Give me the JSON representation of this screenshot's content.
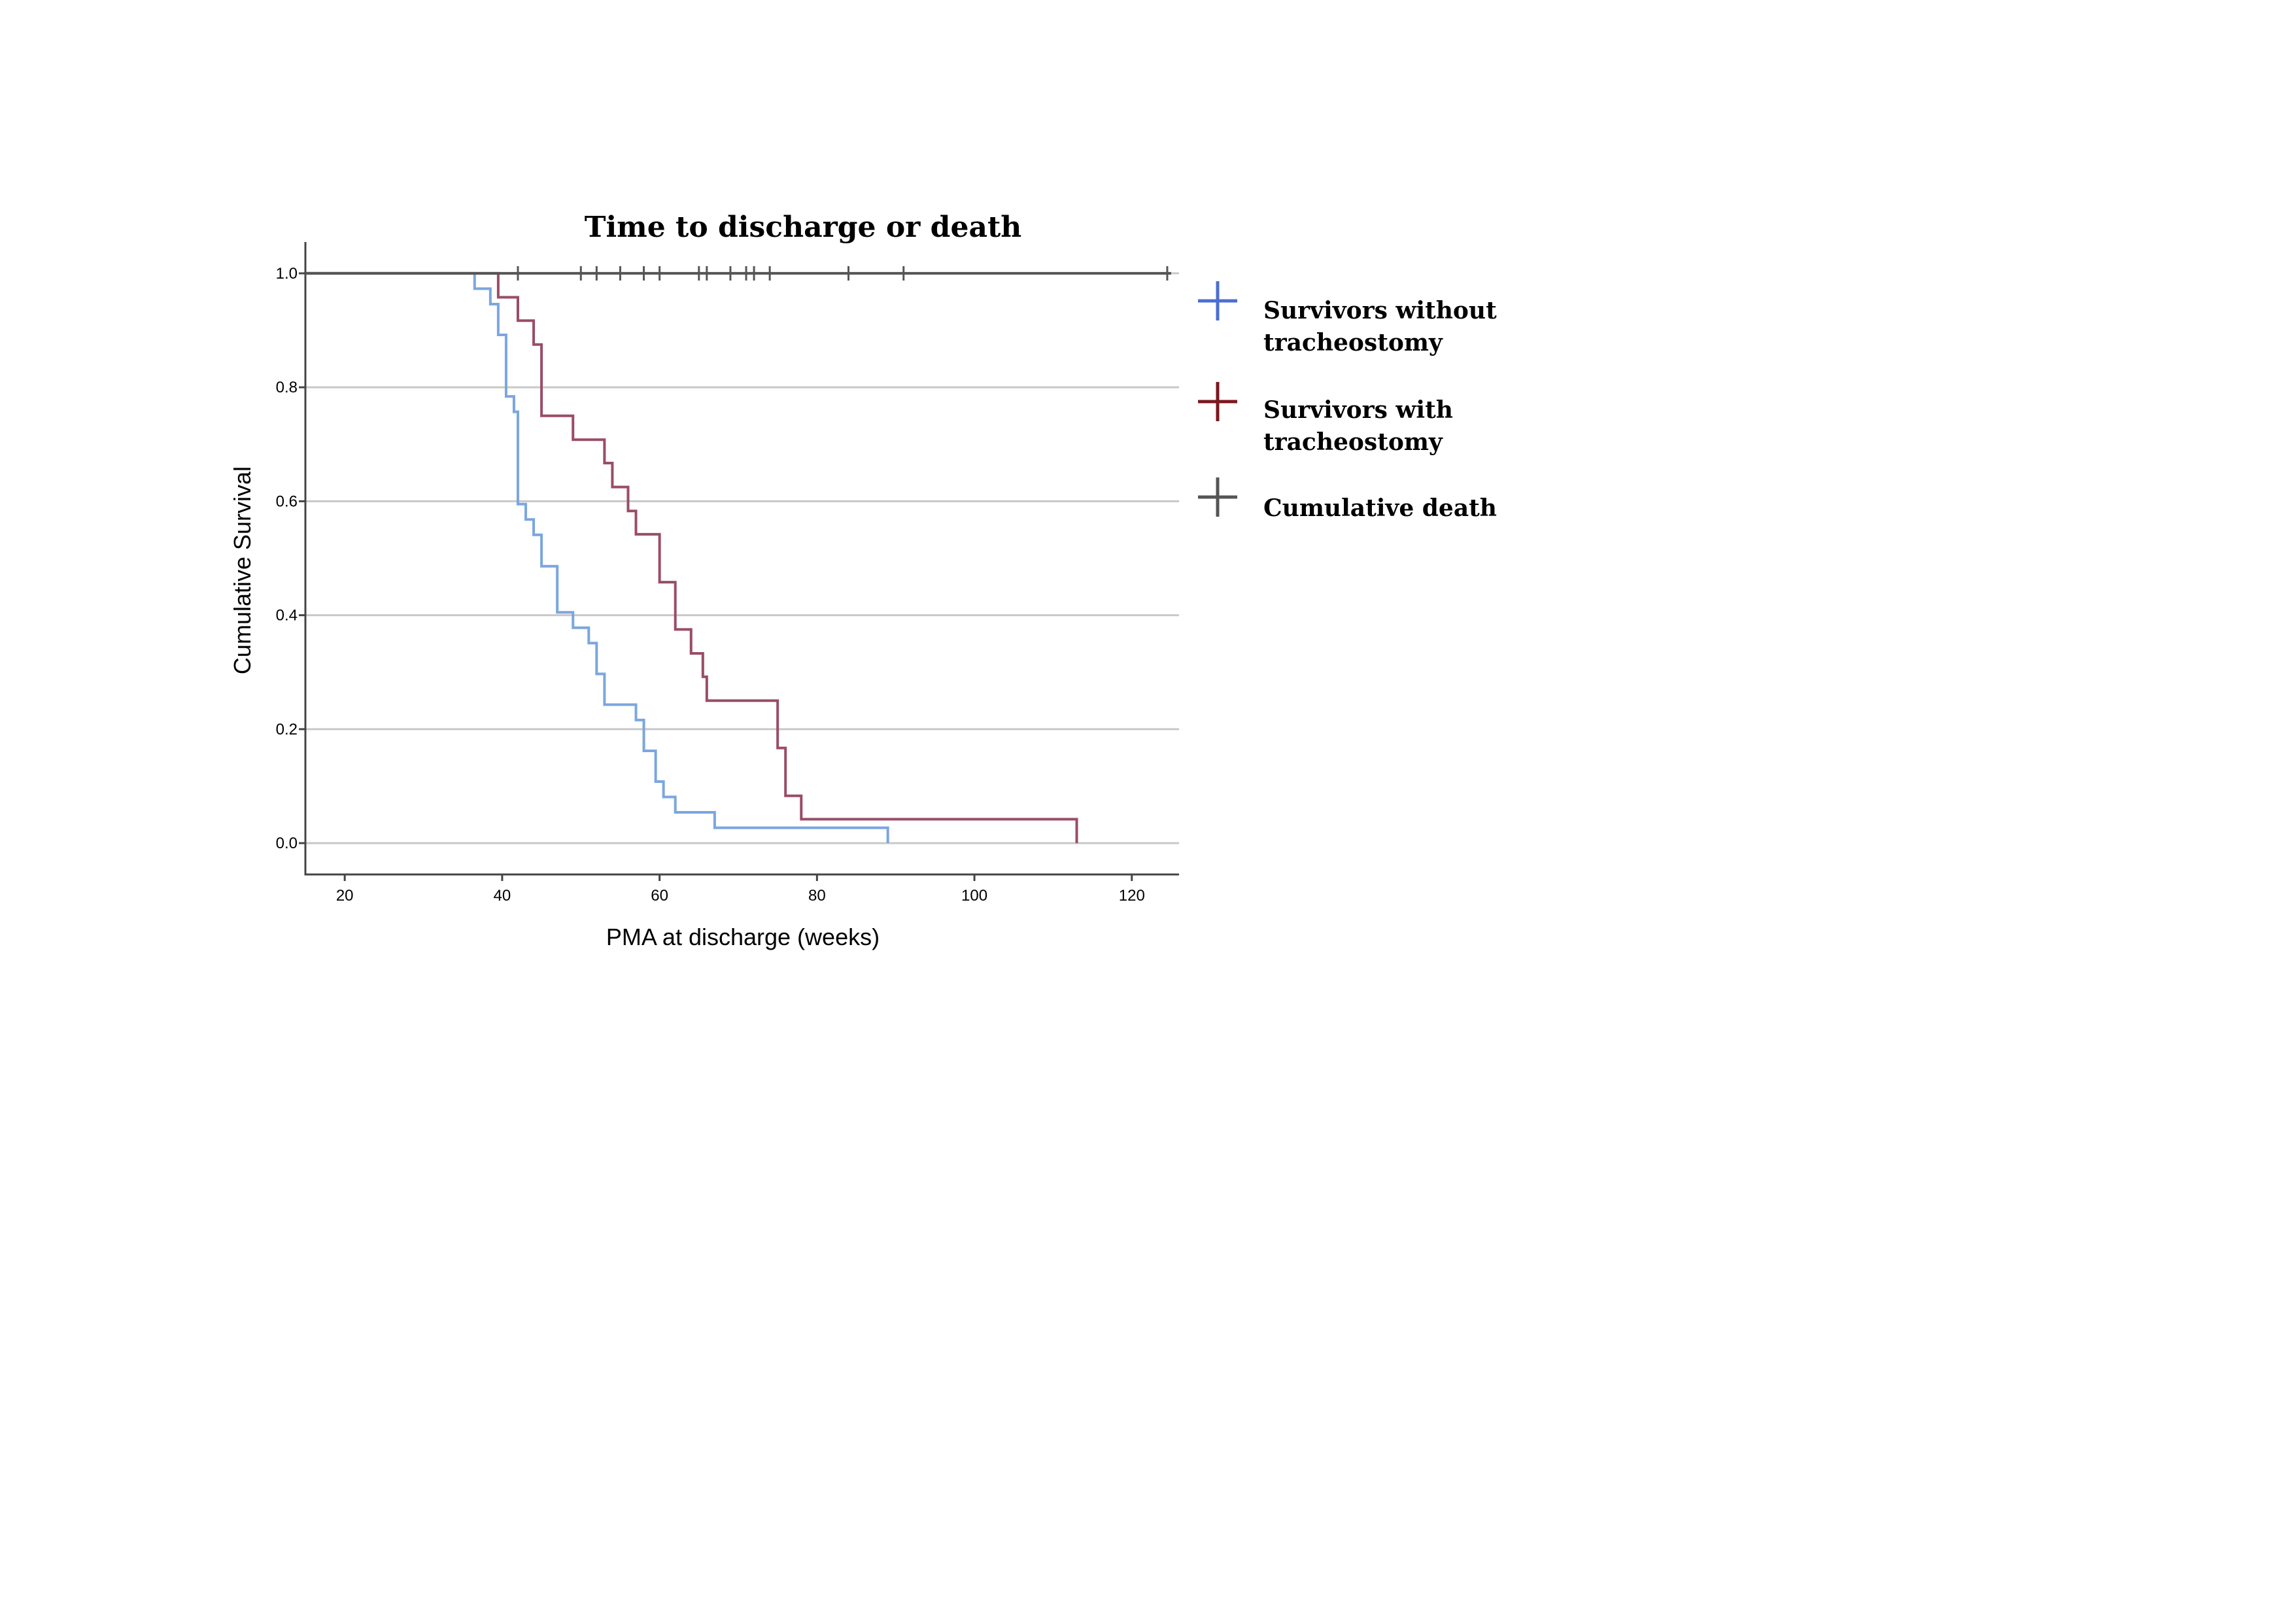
{
  "chart_data": {
    "type": "line",
    "title": "Time to discharge or death",
    "xlabel": "PMA at discharge (weeks)",
    "ylabel": "Cumulative Survival",
    "xlim": [
      15,
      126
    ],
    "ylim": [
      -0.055,
      1.055
    ],
    "x_ticks": [
      20,
      40,
      60,
      80,
      100,
      120
    ],
    "x_tick_labels": [
      "20",
      "40",
      "60",
      "80",
      "100",
      "120"
    ],
    "y_ticks": [
      0.0,
      0.2,
      0.4,
      0.6,
      0.8,
      1.0
    ],
    "y_tick_labels": [
      "0.0",
      "0.2",
      "0.4",
      "0.6",
      "0.8",
      "1.0"
    ],
    "grid": "horizontal",
    "legend_position": "right",
    "step": true,
    "series": [
      {
        "name": "Survivors without tracheostomy",
        "color": "#7ba6e0",
        "legend_color": "#4b6fd1",
        "x": [
          15,
          36.5,
          38.5,
          39.5,
          40.5,
          41.5,
          42,
          43,
          44,
          45,
          47,
          49,
          51,
          52,
          53,
          57,
          58,
          59.5,
          60.5,
          62,
          67,
          89,
          89
        ],
        "y": [
          1.0,
          0.973,
          0.946,
          0.892,
          0.784,
          0.757,
          0.595,
          0.568,
          0.541,
          0.486,
          0.405,
          0.378,
          0.351,
          0.297,
          0.243,
          0.216,
          0.162,
          0.108,
          0.081,
          0.054,
          0.027,
          0.027,
          0.0
        ]
      },
      {
        "name": "Survivors with tracheostomy",
        "color": "#9a4d66",
        "legend_color": "#7a1820",
        "x": [
          15,
          39.5,
          42,
          44,
          45,
          49,
          53,
          54,
          56,
          57,
          60,
          62,
          64,
          65.5,
          66,
          75,
          76,
          78,
          113,
          113
        ],
        "y": [
          1.0,
          0.958,
          0.917,
          0.875,
          0.75,
          0.708,
          0.667,
          0.625,
          0.583,
          0.542,
          0.458,
          0.375,
          0.333,
          0.292,
          0.25,
          0.167,
          0.083,
          0.042,
          0.042,
          0.0
        ]
      },
      {
        "name": "Cumulative death",
        "color": "#555555",
        "legend_color": "#555555",
        "x": [
          15,
          125
        ],
        "y": [
          1.0,
          1.0
        ],
        "censor_x": [
          42,
          50,
          52,
          55,
          58,
          60,
          65,
          66,
          69,
          71,
          72,
          74,
          84,
          91,
          124.5
        ]
      }
    ]
  }
}
